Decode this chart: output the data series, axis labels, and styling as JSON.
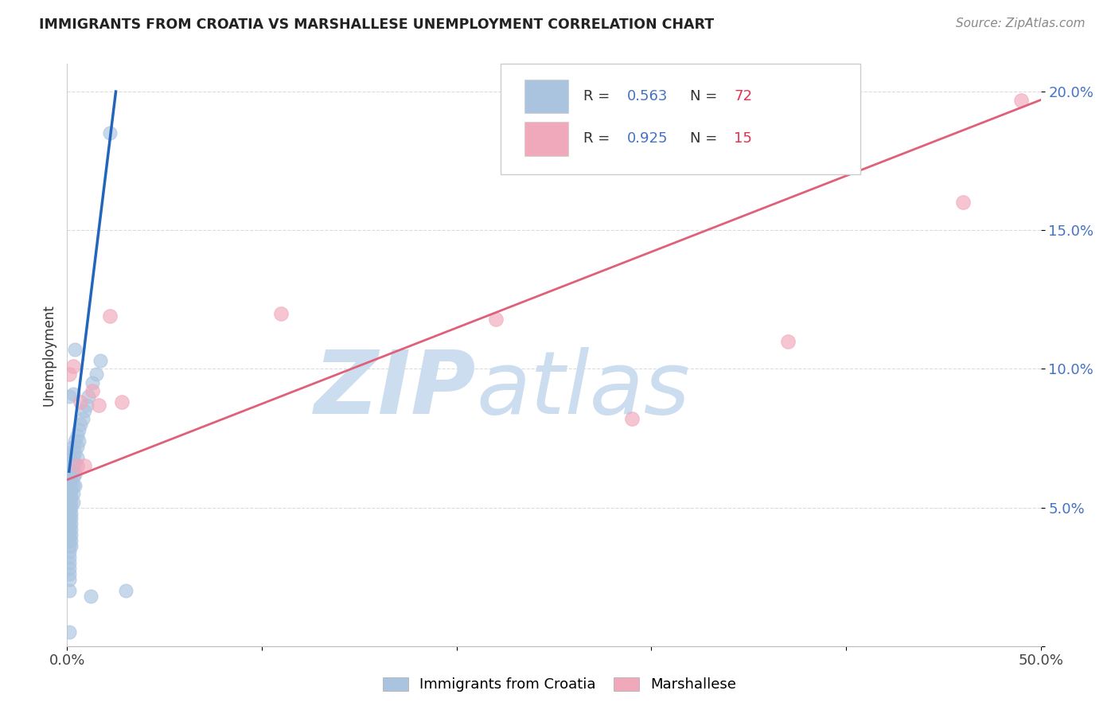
{
  "title": "IMMIGRANTS FROM CROATIA VS MARSHALLESE UNEMPLOYMENT CORRELATION CHART",
  "source": "Source: ZipAtlas.com",
  "ylabel": "Unemployment",
  "xlim": [
    0.0,
    0.5
  ],
  "ylim": [
    0.0,
    0.21
  ],
  "blue_color": "#aac4e0",
  "pink_color": "#f0a8bb",
  "blue_line_color": "#2266bb",
  "pink_line_color": "#e0607a",
  "blue_scatter": [
    [
      0.001,
      0.068
    ],
    [
      0.001,
      0.065
    ],
    [
      0.001,
      0.062
    ],
    [
      0.001,
      0.06
    ],
    [
      0.001,
      0.058
    ],
    [
      0.001,
      0.056
    ],
    [
      0.001,
      0.054
    ],
    [
      0.001,
      0.052
    ],
    [
      0.001,
      0.05
    ],
    [
      0.001,
      0.048
    ],
    [
      0.001,
      0.046
    ],
    [
      0.001,
      0.044
    ],
    [
      0.001,
      0.042
    ],
    [
      0.001,
      0.04
    ],
    [
      0.001,
      0.038
    ],
    [
      0.001,
      0.036
    ],
    [
      0.001,
      0.034
    ],
    [
      0.001,
      0.032
    ],
    [
      0.001,
      0.03
    ],
    [
      0.001,
      0.028
    ],
    [
      0.001,
      0.026
    ],
    [
      0.001,
      0.024
    ],
    [
      0.002,
      0.07
    ],
    [
      0.002,
      0.067
    ],
    [
      0.002,
      0.064
    ],
    [
      0.002,
      0.062
    ],
    [
      0.002,
      0.06
    ],
    [
      0.002,
      0.058
    ],
    [
      0.002,
      0.056
    ],
    [
      0.002,
      0.054
    ],
    [
      0.002,
      0.052
    ],
    [
      0.002,
      0.05
    ],
    [
      0.002,
      0.048
    ],
    [
      0.002,
      0.046
    ],
    [
      0.002,
      0.044
    ],
    [
      0.002,
      0.042
    ],
    [
      0.002,
      0.04
    ],
    [
      0.002,
      0.038
    ],
    [
      0.002,
      0.036
    ],
    [
      0.003,
      0.072
    ],
    [
      0.003,
      0.068
    ],
    [
      0.003,
      0.064
    ],
    [
      0.003,
      0.061
    ],
    [
      0.003,
      0.058
    ],
    [
      0.003,
      0.055
    ],
    [
      0.003,
      0.052
    ],
    [
      0.004,
      0.074
    ],
    [
      0.004,
      0.07
    ],
    [
      0.004,
      0.066
    ],
    [
      0.004,
      0.062
    ],
    [
      0.004,
      0.058
    ],
    [
      0.005,
      0.076
    ],
    [
      0.005,
      0.072
    ],
    [
      0.005,
      0.068
    ],
    [
      0.006,
      0.078
    ],
    [
      0.006,
      0.074
    ],
    [
      0.007,
      0.08
    ],
    [
      0.008,
      0.082
    ],
    [
      0.009,
      0.085
    ],
    [
      0.01,
      0.087
    ],
    [
      0.011,
      0.09
    ],
    [
      0.013,
      0.095
    ],
    [
      0.015,
      0.098
    ],
    [
      0.004,
      0.107
    ],
    [
      0.017,
      0.103
    ],
    [
      0.022,
      0.185
    ],
    [
      0.003,
      0.091
    ],
    [
      0.001,
      0.09
    ],
    [
      0.001,
      0.02
    ],
    [
      0.012,
      0.018
    ],
    [
      0.03,
      0.02
    ],
    [
      0.001,
      0.005
    ]
  ],
  "pink_scatter": [
    [
      0.001,
      0.098
    ],
    [
      0.003,
      0.101
    ],
    [
      0.005,
      0.065
    ],
    [
      0.007,
      0.088
    ],
    [
      0.009,
      0.065
    ],
    [
      0.013,
      0.092
    ],
    [
      0.016,
      0.087
    ],
    [
      0.022,
      0.119
    ],
    [
      0.028,
      0.088
    ],
    [
      0.11,
      0.12
    ],
    [
      0.22,
      0.118
    ],
    [
      0.29,
      0.082
    ],
    [
      0.37,
      0.11
    ],
    [
      0.46,
      0.16
    ],
    [
      0.49,
      0.197
    ]
  ],
  "blue_trend_x": [
    0.001,
    0.025
  ],
  "blue_trend_y": [
    0.063,
    0.2
  ],
  "pink_trend_x": [
    0.0,
    0.5
  ],
  "pink_trend_y": [
    0.06,
    0.197
  ],
  "watermark_zip": "ZIP",
  "watermark_atlas": "atlas",
  "watermark_color": "#ccddf0",
  "grid_color": "#d8d8d8",
  "ytick_color": "#4472c4",
  "legend_r_color": "#4472c4",
  "legend_n_color": "#e83050"
}
